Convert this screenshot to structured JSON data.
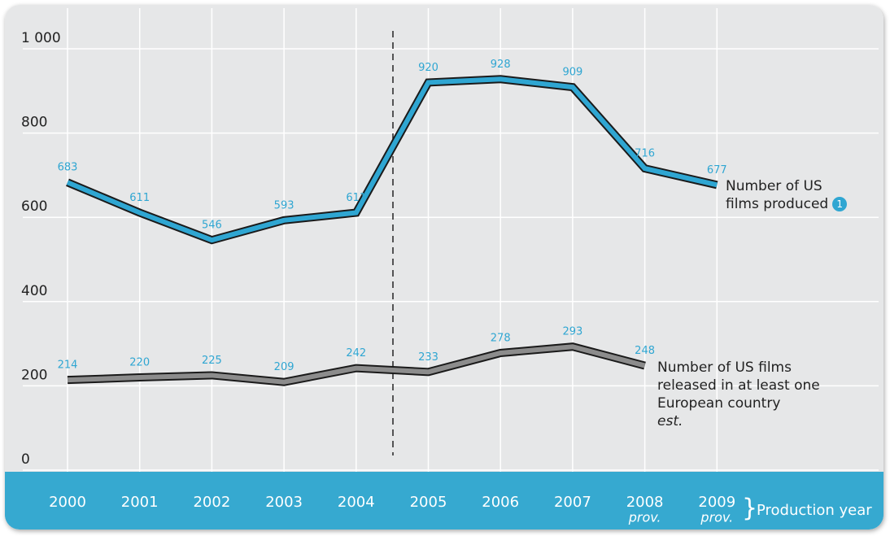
{
  "chart_data": {
    "type": "line",
    "categories": [
      "2000",
      "2001",
      "2002",
      "2003",
      "2004",
      "2005",
      "2006",
      "2007",
      "2008",
      "2009"
    ],
    "category_notes": [
      null,
      null,
      null,
      null,
      null,
      null,
      null,
      null,
      "prov.",
      "prov."
    ],
    "x_label": "Production year",
    "series": [
      {
        "name": "Number of US films produced",
        "note_marker": "1",
        "color": "#2fa6d2",
        "values": [
          683,
          611,
          546,
          593,
          611,
          920,
          928,
          909,
          716,
          677
        ]
      },
      {
        "name": "Number of US films released in at least one European country",
        "note": "est.",
        "color": "#8c8c8c",
        "values": [
          214,
          220,
          225,
          209,
          242,
          233,
          278,
          293,
          248,
          null
        ]
      }
    ],
    "ylim": [
      0,
      1000
    ],
    "yticks": [
      0,
      200,
      400,
      600,
      800,
      {
        "value": 1000,
        "label": "1 000"
      }
    ],
    "grid": true
  }
}
